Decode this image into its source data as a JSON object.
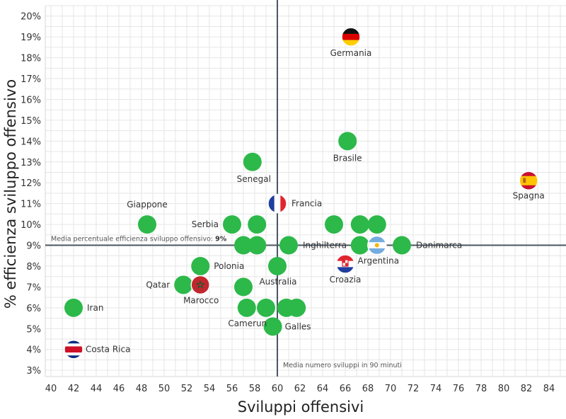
{
  "chart_data": {
    "type": "scatter",
    "title": "",
    "xlabel": "Sviluppi offensivi",
    "ylabel": "% efficienza sviluppo offensivo",
    "xlim": [
      39.5,
      85.5
    ],
    "ylim": [
      2.7,
      20.5
    ],
    "x_ticks": [
      40,
      42,
      44,
      46,
      48,
      50,
      52,
      54,
      56,
      58,
      60,
      62,
      64,
      66,
      68,
      70,
      72,
      74,
      76,
      78,
      80,
      82,
      84
    ],
    "y_ticks": [
      "3%",
      "4%",
      "5%",
      "6%",
      "7%",
      "8%",
      "9%",
      "10%",
      "11%",
      "12%",
      "13%",
      "14%",
      "15%",
      "16%",
      "17%",
      "18%",
      "19%",
      "20%"
    ],
    "grid": true,
    "ref_lines": {
      "x": {
        "value": 60,
        "label": "Media numero sviluppi in 90 minuti"
      },
      "y": {
        "value": 9,
        "label_text": "Media percentuale efficienza sviluppo offensivo:",
        "label_value": "9%"
      }
    },
    "marker_color": "#2db84a",
    "points": [
      {
        "label": "Germania",
        "x": 66.5,
        "y": 19.0,
        "flag": "germany"
      },
      {
        "label": "Brasile",
        "x": 66.2,
        "y": 14.0
      },
      {
        "label": "Senegal",
        "x": 57.8,
        "y": 13.0
      },
      {
        "label": "Spagna",
        "x": 82.2,
        "y": 12.1,
        "flag": "spain"
      },
      {
        "label": "Francia",
        "x": 60.0,
        "y": 11.0,
        "flag": "france"
      },
      {
        "label": "Giappone",
        "x": 48.5,
        "y": 10.0
      },
      {
        "label": "Serbia",
        "x": 56.0,
        "y": 10.0
      },
      {
        "label": "",
        "x": 58.2,
        "y": 10.0
      },
      {
        "label": "",
        "x": 65.0,
        "y": 10.0
      },
      {
        "label": "",
        "x": 67.3,
        "y": 10.0
      },
      {
        "label": "",
        "x": 68.8,
        "y": 10.0
      },
      {
        "label": "",
        "x": 57.0,
        "y": 9.0
      },
      {
        "label": "",
        "x": 58.2,
        "y": 9.0
      },
      {
        "label": "Inghilterra",
        "x": 61.0,
        "y": 9.0
      },
      {
        "label": "",
        "x": 67.3,
        "y": 9.0
      },
      {
        "label": "Argentina",
        "x": 68.8,
        "y": 9.0,
        "flag": "argentina"
      },
      {
        "label": "Danimarca",
        "x": 71.0,
        "y": 9.0
      },
      {
        "label": "Croazia",
        "x": 66.0,
        "y": 8.1,
        "flag": "croatia"
      },
      {
        "label": "Polonia",
        "x": 53.2,
        "y": 8.0
      },
      {
        "label": "Australia",
        "x": 60.0,
        "y": 8.0
      },
      {
        "label": "Qatar",
        "x": 51.7,
        "y": 7.1
      },
      {
        "label": "Marocco",
        "x": 53.2,
        "y": 7.1,
        "flag": "morocco"
      },
      {
        "label": "",
        "x": 57.0,
        "y": 7.0
      },
      {
        "label": "Iran",
        "x": 42.0,
        "y": 6.0
      },
      {
        "label": "Camerun",
        "x": 57.3,
        "y": 6.0
      },
      {
        "label": "",
        "x": 59.0,
        "y": 6.0
      },
      {
        "label": "",
        "x": 60.8,
        "y": 6.0
      },
      {
        "label": "",
        "x": 61.7,
        "y": 6.0
      },
      {
        "label": "Galles",
        "x": 59.6,
        "y": 5.1
      },
      {
        "label": "Costa Rica",
        "x": 42.0,
        "y": 4.0,
        "flag": "costa-rica"
      }
    ]
  }
}
